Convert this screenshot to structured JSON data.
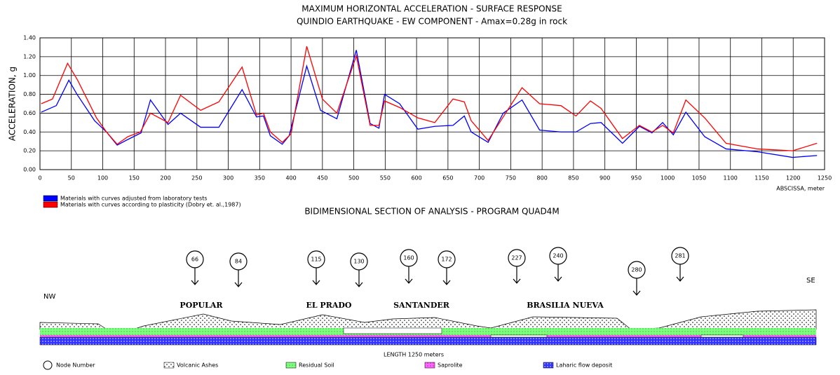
{
  "chart_data": {
    "type": "line",
    "title": "MAXIMUM HORIZONTAL ACCELERATION - SURFACE RESPONSE",
    "subtitle": "QUINDIO EARTHQUAKE - EW COMPONENT - Amax=0.28g in rock",
    "y_label": "ACCELERATION, g",
    "x_label": "ABSCISSA, meter",
    "xlim": [
      0,
      1250
    ],
    "xticks": [
      0,
      50,
      100,
      150,
      200,
      250,
      300,
      350,
      400,
      450,
      500,
      550,
      600,
      650,
      700,
      750,
      800,
      850,
      900,
      950,
      1000,
      1050,
      1100,
      1150,
      1200,
      1250
    ],
    "ylim": [
      0,
      1.4
    ],
    "yticks": [
      {
        "value": 0,
        "label": "0.00"
      },
      {
        "value": 0.2,
        "label": "0.20"
      },
      {
        "value": 0.4,
        "label": "0.40"
      },
      {
        "value": 0.6,
        "label": "0.60"
      },
      {
        "value": 0.8,
        "label": "0.80"
      },
      {
        "value": 1.0,
        "label": "1.00"
      },
      {
        "value": 1.2,
        "label": "1.20"
      },
      {
        "value": 1.4,
        "label": "1.40"
      }
    ],
    "grid": true,
    "legend": "bottom-left",
    "series": [
      {
        "name": "Materials with curves adjusted from laboratory tests",
        "color": "#0000ff",
        "x": [
          2,
          26,
          46,
          59,
          87,
          106,
          123,
          137,
          161,
          176,
          204,
          224,
          256,
          285,
          322,
          345,
          356,
          367,
          386,
          397,
          425,
          447,
          473,
          504,
          526,
          540,
          549,
          573,
          602,
          629,
          658,
          676,
          687,
          714,
          738,
          768,
          796,
          830,
          854,
          877,
          894,
          928,
          955,
          975,
          992,
          1009,
          1029,
          1059,
          1093,
          1143,
          1199,
          1238
        ],
        "values": [
          0.61,
          0.68,
          0.95,
          0.8,
          0.52,
          0.4,
          0.26,
          0.31,
          0.39,
          0.74,
          0.48,
          0.6,
          0.45,
          0.45,
          0.85,
          0.56,
          0.57,
          0.36,
          0.27,
          0.36,
          1.1,
          0.63,
          0.54,
          1.27,
          0.49,
          0.44,
          0.8,
          0.7,
          0.43,
          0.46,
          0.47,
          0.57,
          0.4,
          0.29,
          0.6,
          0.74,
          0.42,
          0.4,
          0.4,
          0.49,
          0.5,
          0.28,
          0.46,
          0.39,
          0.5,
          0.37,
          0.61,
          0.35,
          0.22,
          0.19,
          0.13,
          0.15
        ]
      },
      {
        "name": "Materials with curves according to plasticity (Dobry et. al.,1987)",
        "color": "#ff0000",
        "x": [
          2,
          20,
          44,
          60,
          90,
          106,
          123,
          140,
          160,
          176,
          204,
          224,
          256,
          285,
          322,
          345,
          356,
          367,
          386,
          400,
          425,
          450,
          473,
          504,
          526,
          540,
          549,
          573,
          602,
          629,
          658,
          676,
          687,
          714,
          738,
          768,
          796,
          830,
          854,
          877,
          894,
          928,
          955,
          975,
          992,
          1009,
          1029,
          1059,
          1093,
          1143,
          1199,
          1238
        ],
        "values": [
          0.7,
          0.75,
          1.13,
          0.95,
          0.55,
          0.4,
          0.27,
          0.35,
          0.4,
          0.6,
          0.5,
          0.79,
          0.63,
          0.72,
          1.09,
          0.58,
          0.6,
          0.4,
          0.29,
          0.38,
          1.31,
          0.75,
          0.6,
          1.21,
          0.47,
          0.47,
          0.73,
          0.66,
          0.55,
          0.5,
          0.75,
          0.72,
          0.52,
          0.31,
          0.56,
          0.87,
          0.7,
          0.68,
          0.57,
          0.73,
          0.65,
          0.33,
          0.47,
          0.4,
          0.47,
          0.39,
          0.74,
          0.55,
          0.28,
          0.22,
          0.2,
          0.28
        ]
      }
    ]
  },
  "section": {
    "title": "BIDIMENSIONAL SECTION OF ANALYSIS - PROGRAM QUAD4M",
    "left": "NW",
    "right": "SE",
    "nodes": [
      "66",
      "84",
      "115",
      "130",
      "160",
      "172",
      "227",
      "240",
      "280",
      "281"
    ],
    "places": [
      "POPULAR",
      "EL PRADO",
      "SANTANDER",
      "BRASILIA NUEVA"
    ],
    "length": "LENGTH 1250 meters",
    "legend": [
      "Node Number",
      "Volcanic Ashes",
      "Residual Soil",
      "Saprolite",
      "Laharic flow deposit"
    ]
  }
}
